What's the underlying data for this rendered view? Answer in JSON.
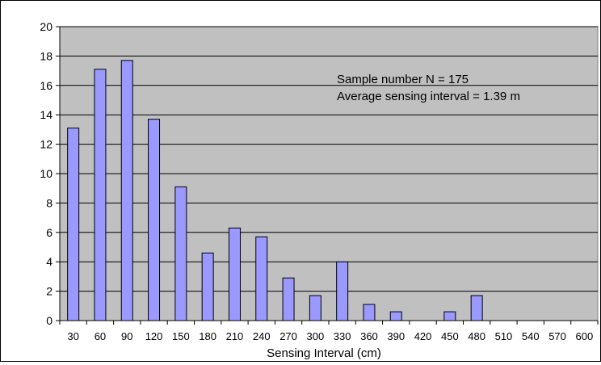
{
  "chart_data": {
    "type": "bar",
    "categories": [
      "30",
      "60",
      "90",
      "120",
      "150",
      "180",
      "210",
      "240",
      "270",
      "300",
      "330",
      "360",
      "390",
      "420",
      "450",
      "480",
      "510",
      "540",
      "570",
      "600"
    ],
    "values": [
      13.1,
      17.1,
      17.7,
      13.7,
      9.1,
      4.6,
      6.3,
      5.7,
      2.9,
      1.7,
      4.0,
      1.1,
      0.6,
      0,
      0.6,
      1.7,
      0,
      0,
      0,
      0
    ],
    "xlabel": "Sensing Interval (cm)",
    "ylabel": "",
    "ylim": [
      0,
      20
    ],
    "yticks": [
      "0",
      "2",
      "4",
      "6",
      "8",
      "10",
      "12",
      "14",
      "16",
      "18",
      "20"
    ],
    "grid": true,
    "annotations": [
      "Sample number N = 175",
      "Average sensing interval = 1.39 m"
    ],
    "colors": {
      "plot_background": "#c0c0c0",
      "bar_fill": "#9999ff",
      "bar_stroke": "#000000",
      "gridline": "#000000"
    }
  }
}
